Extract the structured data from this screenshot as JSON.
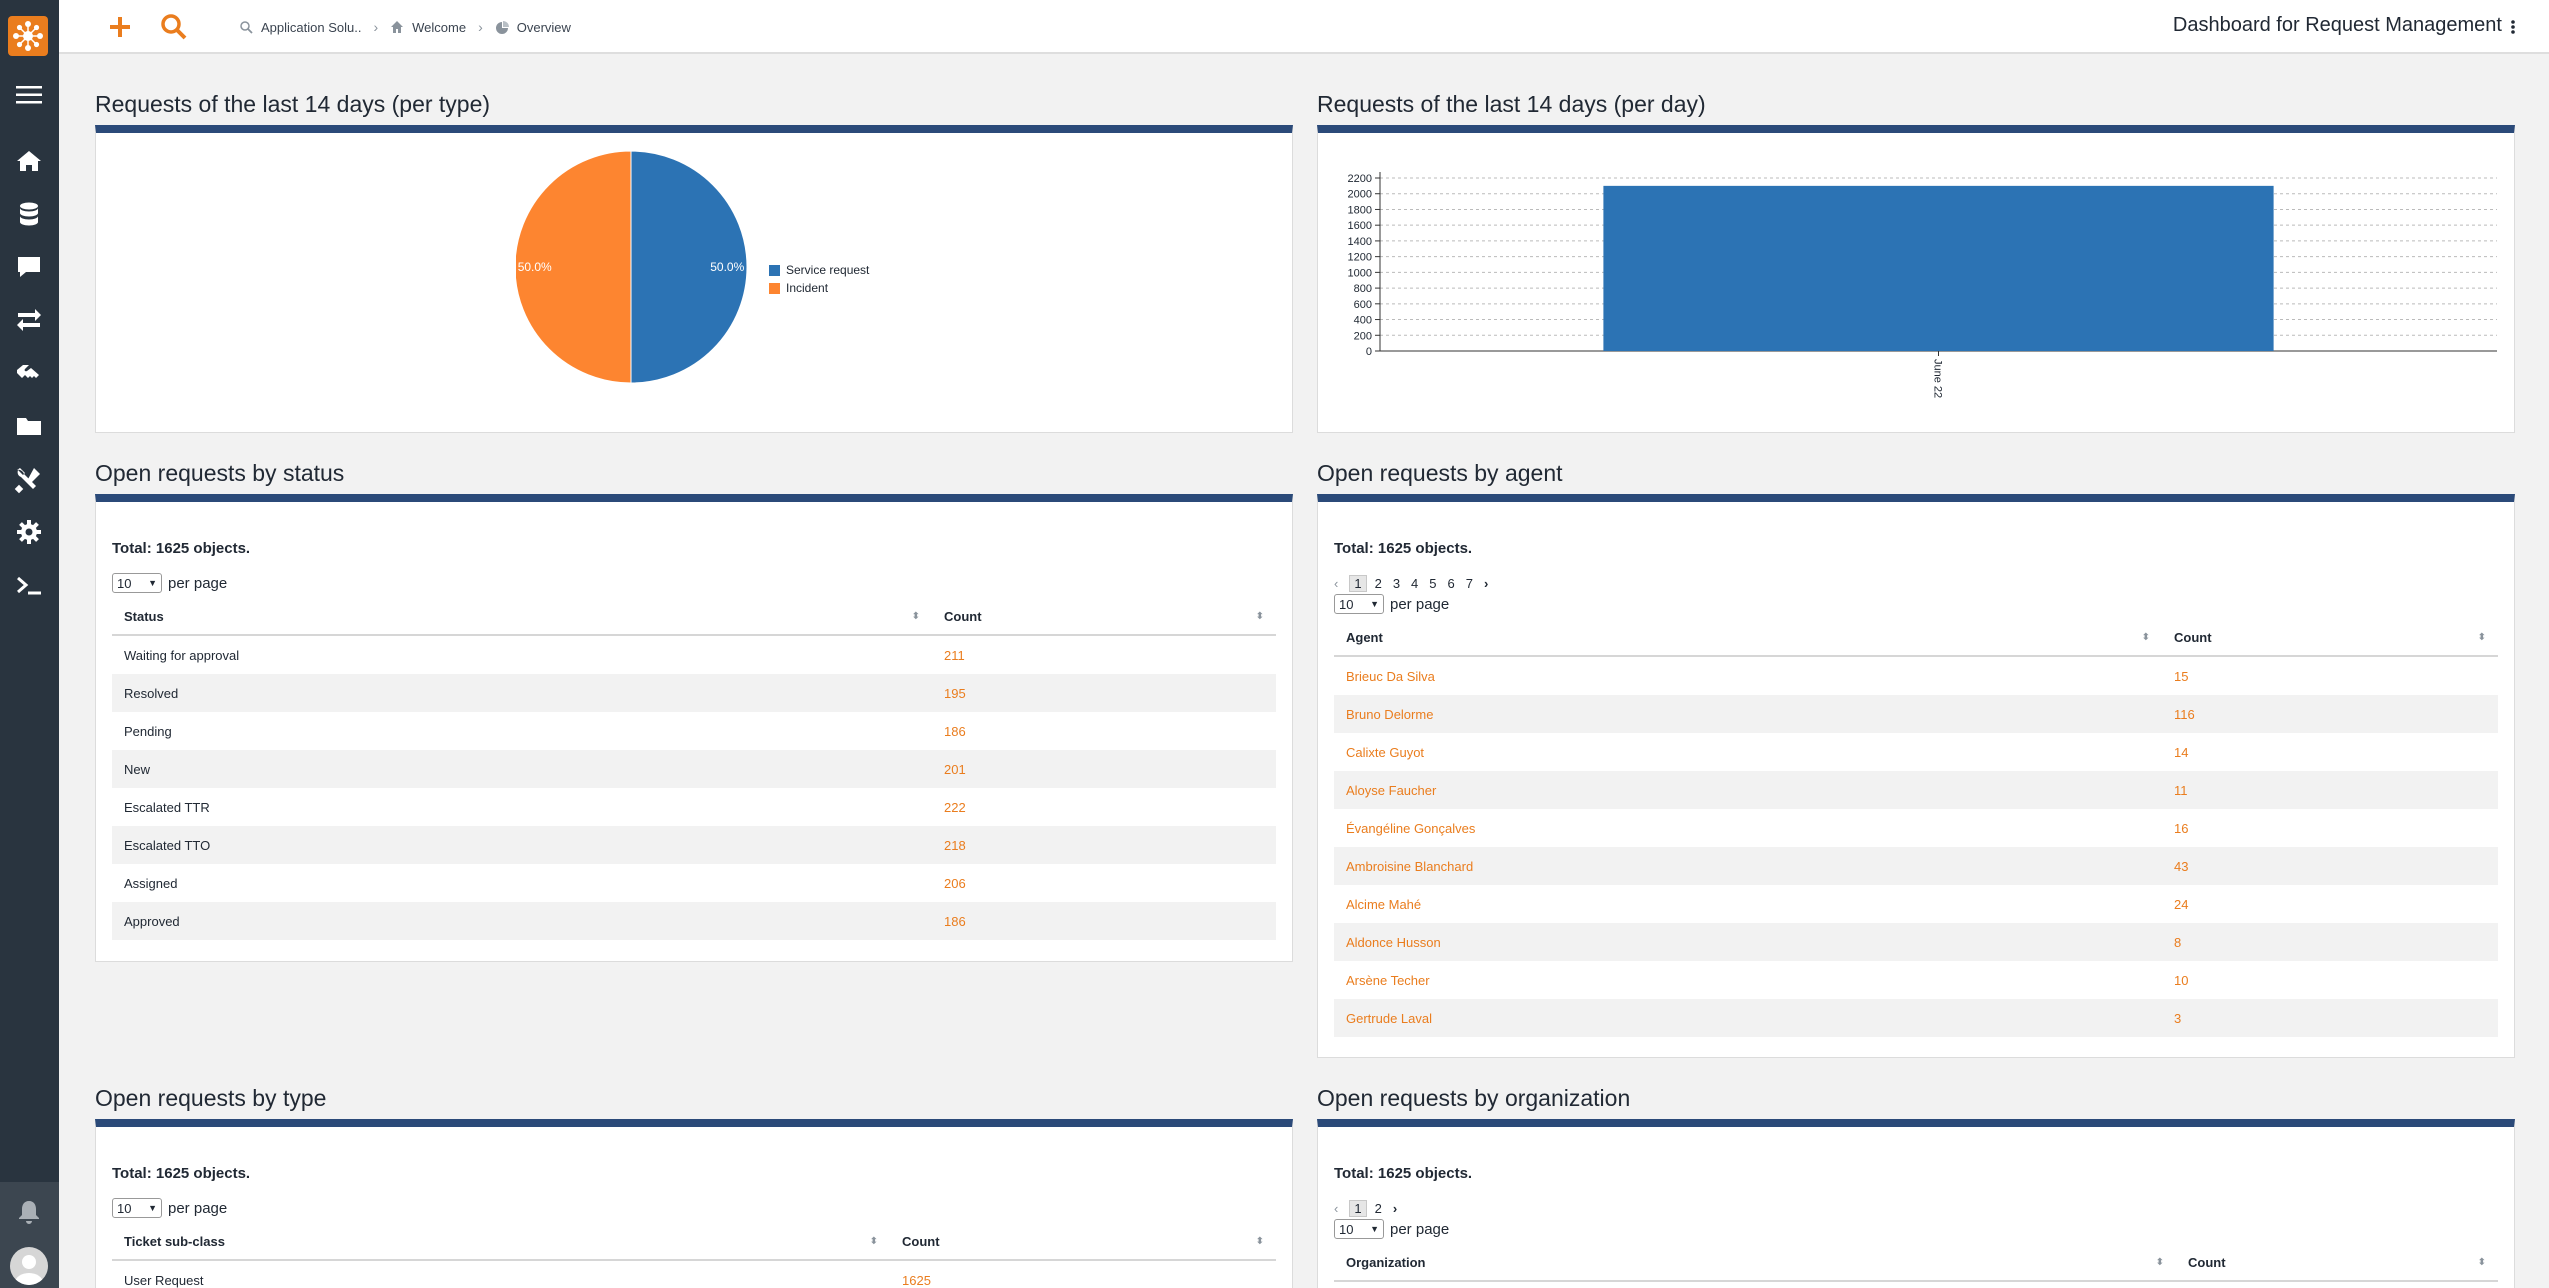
{
  "topbar": {
    "breadcrumb": [
      {
        "label": "Application Solu..",
        "icon": "search-icon"
      },
      {
        "label": "Welcome",
        "icon": "home-icon"
      },
      {
        "label": "Overview",
        "icon": "dashboard-icon"
      }
    ],
    "title": "Dashboard for Request Management"
  },
  "sidebar": {
    "icons": [
      "menu-icon",
      "home-icon",
      "database-icon",
      "comment-icon",
      "exchange-icon",
      "handshake-icon",
      "folder-icon",
      "tools-icon",
      "gear-icon",
      "terminal-icon"
    ],
    "bottom": [
      "bell-icon",
      "avatar"
    ]
  },
  "colors": {
    "accent": "#ea7d1e",
    "panel_header": "#2b4a79",
    "sidebar": "#29343f",
    "series_blue": "#2c73b4",
    "series_orange": "#fd8530"
  },
  "panels": {
    "per_type": {
      "title": "Requests of the last 14 days (per type)",
      "chart_data": {
        "type": "pie",
        "slices": [
          {
            "label": "Service request",
            "value": 50.0,
            "color": "#2c73b4"
          },
          {
            "label": "Incident",
            "value": 50.0,
            "color": "#fd8530"
          }
        ],
        "labels": [
          "50.0%",
          "50.0%"
        ],
        "legend": "right"
      }
    },
    "per_day": {
      "title": "Requests of the last 14 days (per day)",
      "chart_data": {
        "type": "bar",
        "categories": [
          "June 22"
        ],
        "values": [
          2100
        ],
        "ylim": [
          0,
          2200
        ],
        "yticks": [
          "0",
          "200",
          "400",
          "600",
          "800",
          "1000",
          "1200",
          "1400",
          "1600",
          "1800",
          "2000",
          "2200"
        ],
        "grid": true
      }
    },
    "by_status": {
      "title": "Open requests by status",
      "total": "Total: 1625 objects.",
      "per_page_value": "10",
      "per_page_label": "per page",
      "columns": [
        "Status",
        "Count"
      ],
      "rows": [
        [
          "Waiting for approval",
          "211"
        ],
        [
          "Resolved",
          "195"
        ],
        [
          "Pending",
          "186"
        ],
        [
          "New",
          "201"
        ],
        [
          "Escalated TTR",
          "222"
        ],
        [
          "Escalated TTO",
          "218"
        ],
        [
          "Assigned",
          "206"
        ],
        [
          "Approved",
          "186"
        ]
      ]
    },
    "by_agent": {
      "title": "Open requests by agent",
      "total": "Total: 1625 objects.",
      "pages": [
        "1",
        "2",
        "3",
        "4",
        "5",
        "6",
        "7"
      ],
      "per_page_value": "10",
      "per_page_label": "per page",
      "columns": [
        "Agent",
        "Count"
      ],
      "rows": [
        [
          "Brieuc Da Silva",
          "15"
        ],
        [
          "Bruno Delorme",
          "116"
        ],
        [
          "Calixte Guyot",
          "14"
        ],
        [
          "Aloyse Faucher",
          "11"
        ],
        [
          "Évangéline Gonçalves",
          "16"
        ],
        [
          "Ambroisine Blanchard",
          "43"
        ],
        [
          "Alcime Mahé",
          "24"
        ],
        [
          "Aldonce Husson",
          "8"
        ],
        [
          "Arsène Techer",
          "10"
        ],
        [
          "Gertrude Laval",
          "3"
        ]
      ]
    },
    "by_type": {
      "title": "Open requests by type",
      "total": "Total: 1625 objects.",
      "per_page_value": "10",
      "per_page_label": "per page",
      "columns": [
        "Ticket sub-class",
        "Count"
      ],
      "rows": [
        [
          "User Request",
          "1625"
        ]
      ]
    },
    "by_org": {
      "title": "Open requests by organization",
      "total": "Total: 1625 objects.",
      "pages": [
        "1",
        "2"
      ],
      "per_page_value": "10",
      "per_page_label": "per page",
      "columns": [
        "Organization",
        "Count"
      ]
    }
  }
}
